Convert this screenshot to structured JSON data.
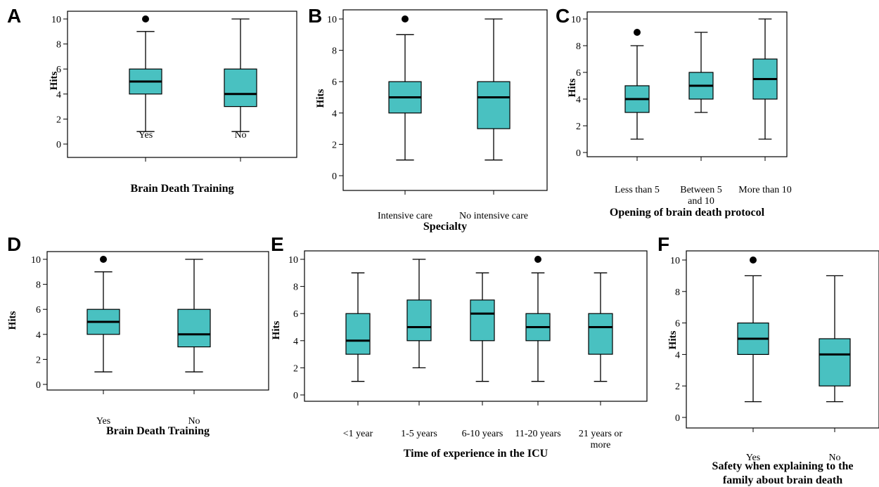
{
  "figure": {
    "colors": {
      "box_fill": "#49C1C1",
      "box_stroke": "#000000",
      "outlier": "#000000"
    }
  },
  "chart_data": [
    {
      "panel": "A",
      "type": "boxplot",
      "xlabel": "Brain Death Training",
      "ylabel": "Hits",
      "ylim": [
        0,
        10
      ],
      "yticks": [
        0,
        2,
        4,
        6,
        8,
        10
      ],
      "categories": [
        [
          "Yes"
        ],
        [
          "No"
        ]
      ],
      "boxes": [
        {
          "min": 1,
          "q1": 4,
          "median": 5,
          "q3": 6,
          "max": 9,
          "outliers": [
            10
          ]
        },
        {
          "min": 1,
          "q1": 3,
          "median": 4,
          "q3": 6,
          "max": 10,
          "outliers": []
        }
      ]
    },
    {
      "panel": "B",
      "type": "boxplot",
      "xlabel": "Specialty",
      "ylabel": "Hits",
      "ylim": [
        0,
        10
      ],
      "yticks": [
        0,
        2,
        4,
        6,
        8,
        10
      ],
      "categories": [
        [
          "Intensive care"
        ],
        [
          "No intensive care"
        ]
      ],
      "boxes": [
        {
          "min": 1,
          "q1": 4,
          "median": 5,
          "q3": 6,
          "max": 9,
          "outliers": [
            10
          ]
        },
        {
          "min": 1,
          "q1": 3,
          "median": 5,
          "q3": 6,
          "max": 10,
          "outliers": []
        }
      ]
    },
    {
      "panel": "C",
      "type": "boxplot",
      "xlabel": "Opening of brain death protocol",
      "ylabel": "Hits",
      "ylim": [
        0,
        10
      ],
      "yticks": [
        0,
        2,
        4,
        6,
        8,
        10
      ],
      "categories": [
        [
          "Less than 5"
        ],
        [
          "Between 5",
          "and 10"
        ],
        [
          "More than 10"
        ]
      ],
      "boxes": [
        {
          "min": 1,
          "q1": 3,
          "median": 4,
          "q3": 5,
          "max": 8,
          "outliers": [
            9
          ]
        },
        {
          "min": 3,
          "q1": 4,
          "median": 5,
          "q3": 6,
          "max": 9,
          "outliers": []
        },
        {
          "min": 1,
          "q1": 4,
          "median": 5.5,
          "q3": 7,
          "max": 10,
          "outliers": []
        }
      ]
    },
    {
      "panel": "D",
      "type": "boxplot",
      "xlabel": "Brain Death Training",
      "ylabel": "Hits",
      "ylim": [
        0,
        10
      ],
      "yticks": [
        0,
        2,
        4,
        6,
        8,
        10
      ],
      "categories": [
        [
          "Yes"
        ],
        [
          "No"
        ]
      ],
      "boxes": [
        {
          "min": 1,
          "q1": 4,
          "median": 5,
          "q3": 6,
          "max": 9,
          "outliers": [
            10
          ]
        },
        {
          "min": 1,
          "q1": 3,
          "median": 4,
          "q3": 6,
          "max": 10,
          "outliers": []
        }
      ]
    },
    {
      "panel": "E",
      "type": "boxplot",
      "xlabel": "Time of experience in the ICU",
      "ylabel": "Hits",
      "ylim": [
        0,
        10
      ],
      "yticks": [
        0,
        2,
        4,
        6,
        8,
        10
      ],
      "categories": [
        [
          "<1 year"
        ],
        [
          "1-5 years"
        ],
        [
          "6-10 years"
        ],
        [
          "11-20 years"
        ],
        [
          "21 years or",
          "more"
        ]
      ],
      "boxes": [
        {
          "min": 1,
          "q1": 3,
          "median": 4,
          "q3": 6,
          "max": 9,
          "outliers": []
        },
        {
          "min": 2,
          "q1": 4,
          "median": 5,
          "q3": 7,
          "max": 10,
          "outliers": []
        },
        {
          "min": 1,
          "q1": 4,
          "median": 6,
          "q3": 7,
          "max": 9,
          "outliers": []
        },
        {
          "min": 1,
          "q1": 4,
          "median": 5,
          "q3": 6,
          "max": 9,
          "outliers": [
            10
          ]
        },
        {
          "min": 1,
          "q1": 3,
          "median": 5,
          "q3": 6,
          "max": 9,
          "outliers": []
        }
      ]
    },
    {
      "panel": "F",
      "type": "boxplot",
      "xlabel": [
        "Safety when explaining to the",
        "family about brain death"
      ],
      "ylabel": "Hits",
      "ylim": [
        0,
        10
      ],
      "yticks": [
        0,
        2,
        4,
        6,
        8,
        10
      ],
      "categories": [
        [
          "Yes"
        ],
        [
          "No"
        ]
      ],
      "boxes": [
        {
          "min": 1,
          "q1": 4,
          "median": 5,
          "q3": 6,
          "max": 9,
          "outliers": [
            10
          ]
        },
        {
          "min": 1,
          "q1": 2,
          "median": 4,
          "q3": 5,
          "max": 9,
          "outliers": []
        }
      ]
    }
  ]
}
